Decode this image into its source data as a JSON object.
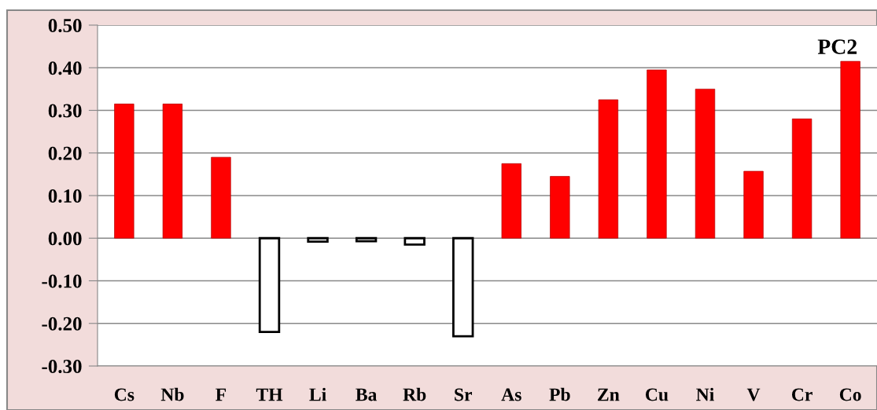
{
  "chart_data": {
    "type": "bar",
    "categories": [
      "Cs",
      "Nb",
      "F",
      "TH",
      "Li",
      "Ba",
      "Rb",
      "Sr",
      "As",
      "Pb",
      "Zn",
      "Cu",
      "Ni",
      "V",
      "Cr",
      "Co"
    ],
    "values": [
      0.315,
      0.315,
      0.19,
      -0.22,
      -0.008,
      -0.007,
      -0.015,
      -0.23,
      0.175,
      0.145,
      0.325,
      0.395,
      0.35,
      0.157,
      0.28,
      0.415
    ],
    "colors": [
      "#ff0000",
      "#ff0000",
      "#ff0000",
      "#ffffff",
      "#ffffff",
      "#ffffff",
      "#ffffff",
      "#ffffff",
      "#ff0000",
      "#ff0000",
      "#ff0000",
      "#ff0000",
      "#ff0000",
      "#ff0000",
      "#ff0000",
      "#ff0000"
    ],
    "ylim": [
      -0.3,
      0.5
    ],
    "yticks": [
      {
        "value": -0.3,
        "label": "-0.30"
      },
      {
        "value": -0.2,
        "label": "-0.20"
      },
      {
        "value": -0.1,
        "label": "-0.10"
      },
      {
        "value": 0,
        "label": "0.00"
      },
      {
        "value": 0.1,
        "label": "0.10"
      },
      {
        "value": 0.2,
        "label": "0.20"
      },
      {
        "value": 0.3,
        "label": "0.30"
      },
      {
        "value": 0.4,
        "label": "0.40"
      },
      {
        "value": 0.5,
        "label": "0.50"
      }
    ],
    "grid": "y",
    "annotations": [
      "PC2"
    ]
  }
}
